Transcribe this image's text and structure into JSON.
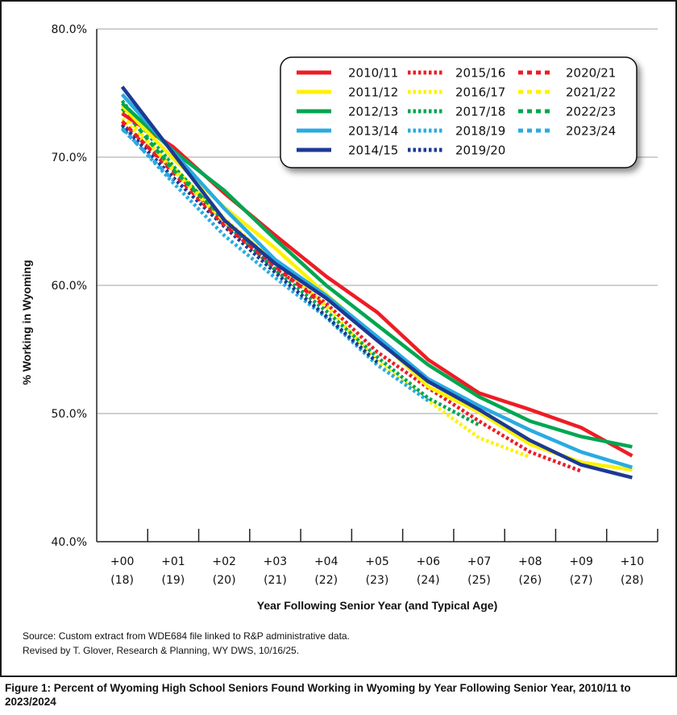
{
  "chart_data": {
    "type": "line",
    "title": "",
    "xlabel": "Year Following Senior Year (and Typical Age)",
    "ylabel": "% Working in Wyoming",
    "ylim": [
      40,
      80
    ],
    "yticks": [
      40,
      50,
      60,
      70,
      80
    ],
    "ytick_labels": [
      "40.0%",
      "50.0%",
      "60.0%",
      "70.0%",
      "80.0%"
    ],
    "grid": "horizontal",
    "legend_position": "top-right",
    "categories": [
      "+00",
      "+01",
      "+02",
      "+03",
      "+04",
      "+05",
      "+06",
      "+07",
      "+08",
      "+09",
      "+10"
    ],
    "category_sublabels": [
      "(18)",
      "(19)",
      "(20)",
      "(21)",
      "(22)",
      "(23)",
      "(24)",
      "(25)",
      "(26)",
      "(27)",
      "(28)"
    ],
    "series": [
      {
        "name": "2010/11",
        "color": "#ee1c25",
        "style": "solid",
        "values": [
          73.4,
          70.8,
          67.2,
          63.9,
          60.7,
          57.9,
          54.2,
          51.6,
          50.3,
          48.9,
          46.7
        ]
      },
      {
        "name": "2011/12",
        "color": "#fff200",
        "style": "solid",
        "values": [
          74.0,
          69.9,
          66.1,
          62.9,
          59.3,
          55.9,
          52.1,
          50.1,
          47.6,
          46.2,
          45.6
        ]
      },
      {
        "name": "2012/13",
        "color": "#00a650",
        "style": "solid",
        "values": [
          74.2,
          70.5,
          67.4,
          63.6,
          60.0,
          56.9,
          53.8,
          51.3,
          49.4,
          48.2,
          47.4
        ]
      },
      {
        "name": "2013/14",
        "color": "#29abe2",
        "style": "solid",
        "values": [
          74.9,
          70.4,
          66.0,
          62.0,
          59.2,
          56.0,
          52.7,
          50.6,
          48.7,
          47.0,
          45.8
        ]
      },
      {
        "name": "2014/15",
        "color": "#1b3a93",
        "style": "solid",
        "values": [
          75.5,
          70.3,
          65.1,
          61.7,
          59.0,
          55.7,
          52.5,
          50.3,
          47.9,
          46.0,
          45.0
        ]
      },
      {
        "name": "2015/16",
        "color": "#ee1c25",
        "style": "dotted",
        "values": [
          72.6,
          69.0,
          64.9,
          61.3,
          58.6,
          54.8,
          52.0,
          49.4,
          47.0,
          45.5,
          null
        ]
      },
      {
        "name": "2016/17",
        "color": "#fff200",
        "style": "dotted",
        "values": [
          73.0,
          69.2,
          65.2,
          61.8,
          58.4,
          54.1,
          51.0,
          48.1,
          46.6,
          null,
          null
        ]
      },
      {
        "name": "2017/18",
        "color": "#00a650",
        "style": "dotted",
        "values": [
          74.4,
          69.3,
          65.0,
          61.2,
          58.0,
          54.4,
          51.2,
          49.1,
          null,
          null,
          null
        ]
      },
      {
        "name": "2018/19",
        "color": "#29abe2",
        "style": "dotted",
        "values": [
          72.3,
          68.0,
          63.9,
          60.6,
          57.5,
          53.8,
          51.0,
          null,
          null,
          null,
          null
        ]
      },
      {
        "name": "2019/20",
        "color": "#1b3a93",
        "style": "dotted",
        "values": [
          72.5,
          68.4,
          64.6,
          61.0,
          57.6,
          54.0,
          null,
          null,
          null,
          null,
          null
        ]
      },
      {
        "name": "2020/21",
        "color": "#ee1c25",
        "style": "dashed",
        "values": [
          72.8,
          68.8,
          64.7,
          61.5,
          58.3,
          null,
          null,
          null,
          null,
          null,
          null
        ]
      },
      {
        "name": "2021/22",
        "color": "#fff200",
        "style": "dashed",
        "values": [
          73.5,
          69.0,
          65.0,
          61.9,
          null,
          null,
          null,
          null,
          null,
          null,
          null
        ]
      },
      {
        "name": "2022/23",
        "color": "#00a650",
        "style": "dashed",
        "values": [
          73.8,
          69.0,
          65.2,
          null,
          null,
          null,
          null,
          null,
          null,
          null,
          null
        ]
      },
      {
        "name": "2023/24",
        "color": "#29abe2",
        "style": "dashed",
        "values": [
          72.2,
          68.2,
          null,
          null,
          null,
          null,
          null,
          null,
          null,
          null,
          null
        ]
      }
    ]
  },
  "source": {
    "line1": "Source: Custom extract from WDE684 file linked to R&P administrative data.",
    "line2": "Revised by T. Glover, Research & Planning, WY DWS, 10/16/25."
  },
  "caption": "Figure 1: Percent of Wyoming High School Seniors Found Working in Wyoming by Year Following Senior Year, 2010/11 to 2023/2024"
}
